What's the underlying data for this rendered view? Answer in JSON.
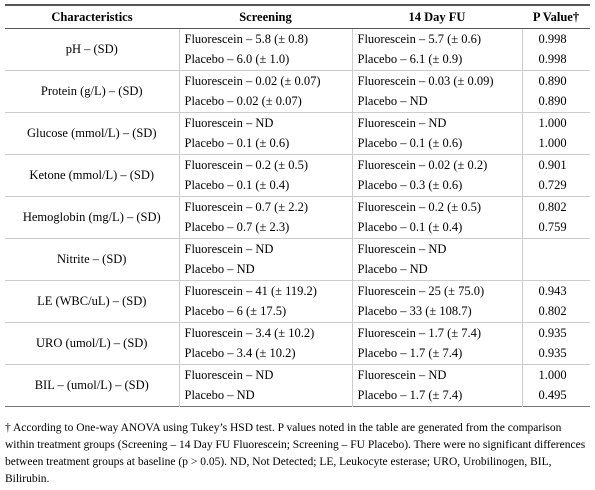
{
  "table": {
    "header": [
      "Characteristics",
      "Screening",
      "14 Day FU",
      "P Value†"
    ],
    "groups": [
      {
        "characteristic": "pH – (SD)",
        "rows": [
          [
            "Fluorescein – 5.8 (± 0.8)",
            "Fluorescein – 5.7 (± 0.6)",
            "0.998"
          ],
          [
            "Placebo – 6.0 (± 1.0)",
            "Placebo – 6.1 (± 0.9)",
            "0.998"
          ]
        ]
      },
      {
        "characteristic": "Protein (g/L) – (SD)",
        "rows": [
          [
            "Fluorescein – 0.02 (± 0.07)",
            "Fluorescein – 0.03 (± 0.09)",
            "0.890"
          ],
          [
            "Placebo – 0.02 (± 0.07)",
            "Placebo – ND",
            "0.890"
          ]
        ]
      },
      {
        "characteristic": "Glucose (mmol/L) – (SD)",
        "rows": [
          [
            "Fluorescein – ND",
            "Fluorescein – ND",
            "1.000"
          ],
          [
            "Placebo – 0.1 (± 0.6)",
            "Placebo – 0.1 (± 0.6)",
            "1.000"
          ]
        ]
      },
      {
        "characteristic": "Ketone (mmol/L) – (SD)",
        "rows": [
          [
            "Fluorescein – 0.2 (± 0.5)",
            "Fluorescein – 0.02 (± 0.2)",
            "0.901"
          ],
          [
            "Placebo – 0.1 (± 0.4)",
            "Placebo – 0.3 (± 0.6)",
            "0.729"
          ]
        ]
      },
      {
        "characteristic": "Hemoglobin (mg/L) – (SD)",
        "rows": [
          [
            "Fluorescein – 0.7 (± 2.2)",
            "Fluorescein – 0.2 (± 0.5)",
            "0.802"
          ],
          [
            "Placebo – 0.7 (± 2.3)",
            "Placebo – 0.1 (± 0.4)",
            "0.759"
          ]
        ]
      },
      {
        "characteristic": "Nitrite – (SD)",
        "rows": [
          [
            "Fluorescein – ND",
            "Fluorescein – ND",
            null
          ],
          [
            "Placebo – ND",
            "Placebo – ND",
            null
          ]
        ]
      },
      {
        "characteristic": "LE (WBC/uL) – (SD)",
        "rows": [
          [
            "Fluorescein – 41 (± 119.2)",
            "Fluorescein – 25 (± 75.0)",
            "0.943"
          ],
          [
            "Placebo – 6 (± 17.5)",
            "Placebo – 33 (± 108.7)",
            "0.802"
          ]
        ]
      },
      {
        "characteristic": "URO (umol/L) – (SD)",
        "rows": [
          [
            "Fluorescein – 3.4 (± 10.2)",
            "Fluorescein – 1.7 (± 7.4)",
            "0.935"
          ],
          [
            "Placebo – 3.4 (± 10.2)",
            "Placebo – 1.7 (± 7.4)",
            "0.935"
          ]
        ]
      },
      {
        "characteristic": "BIL – (umol/L) – (SD)",
        "rows": [
          [
            "Fluorescein – ND",
            "Fluorescein – ND",
            "1.000"
          ],
          [
            "Placebo – ND",
            "Placebo – 1.7 (± 7.4)",
            "0.495"
          ]
        ]
      }
    ],
    "footnote": "† According to One-way ANOVA  using Tukey’s HSD test. P values noted in the table are generated from the comparison within treatment groups (Screening – 14 Day FU Fluorescein; Screening – FU Placebo). There were no significant differences between treatment groups at baseline (p > 0.05). ND, Not Detected; LE, Leukocyte esterase; URO, Urobilinogen, BIL, Bilirubin."
  }
}
